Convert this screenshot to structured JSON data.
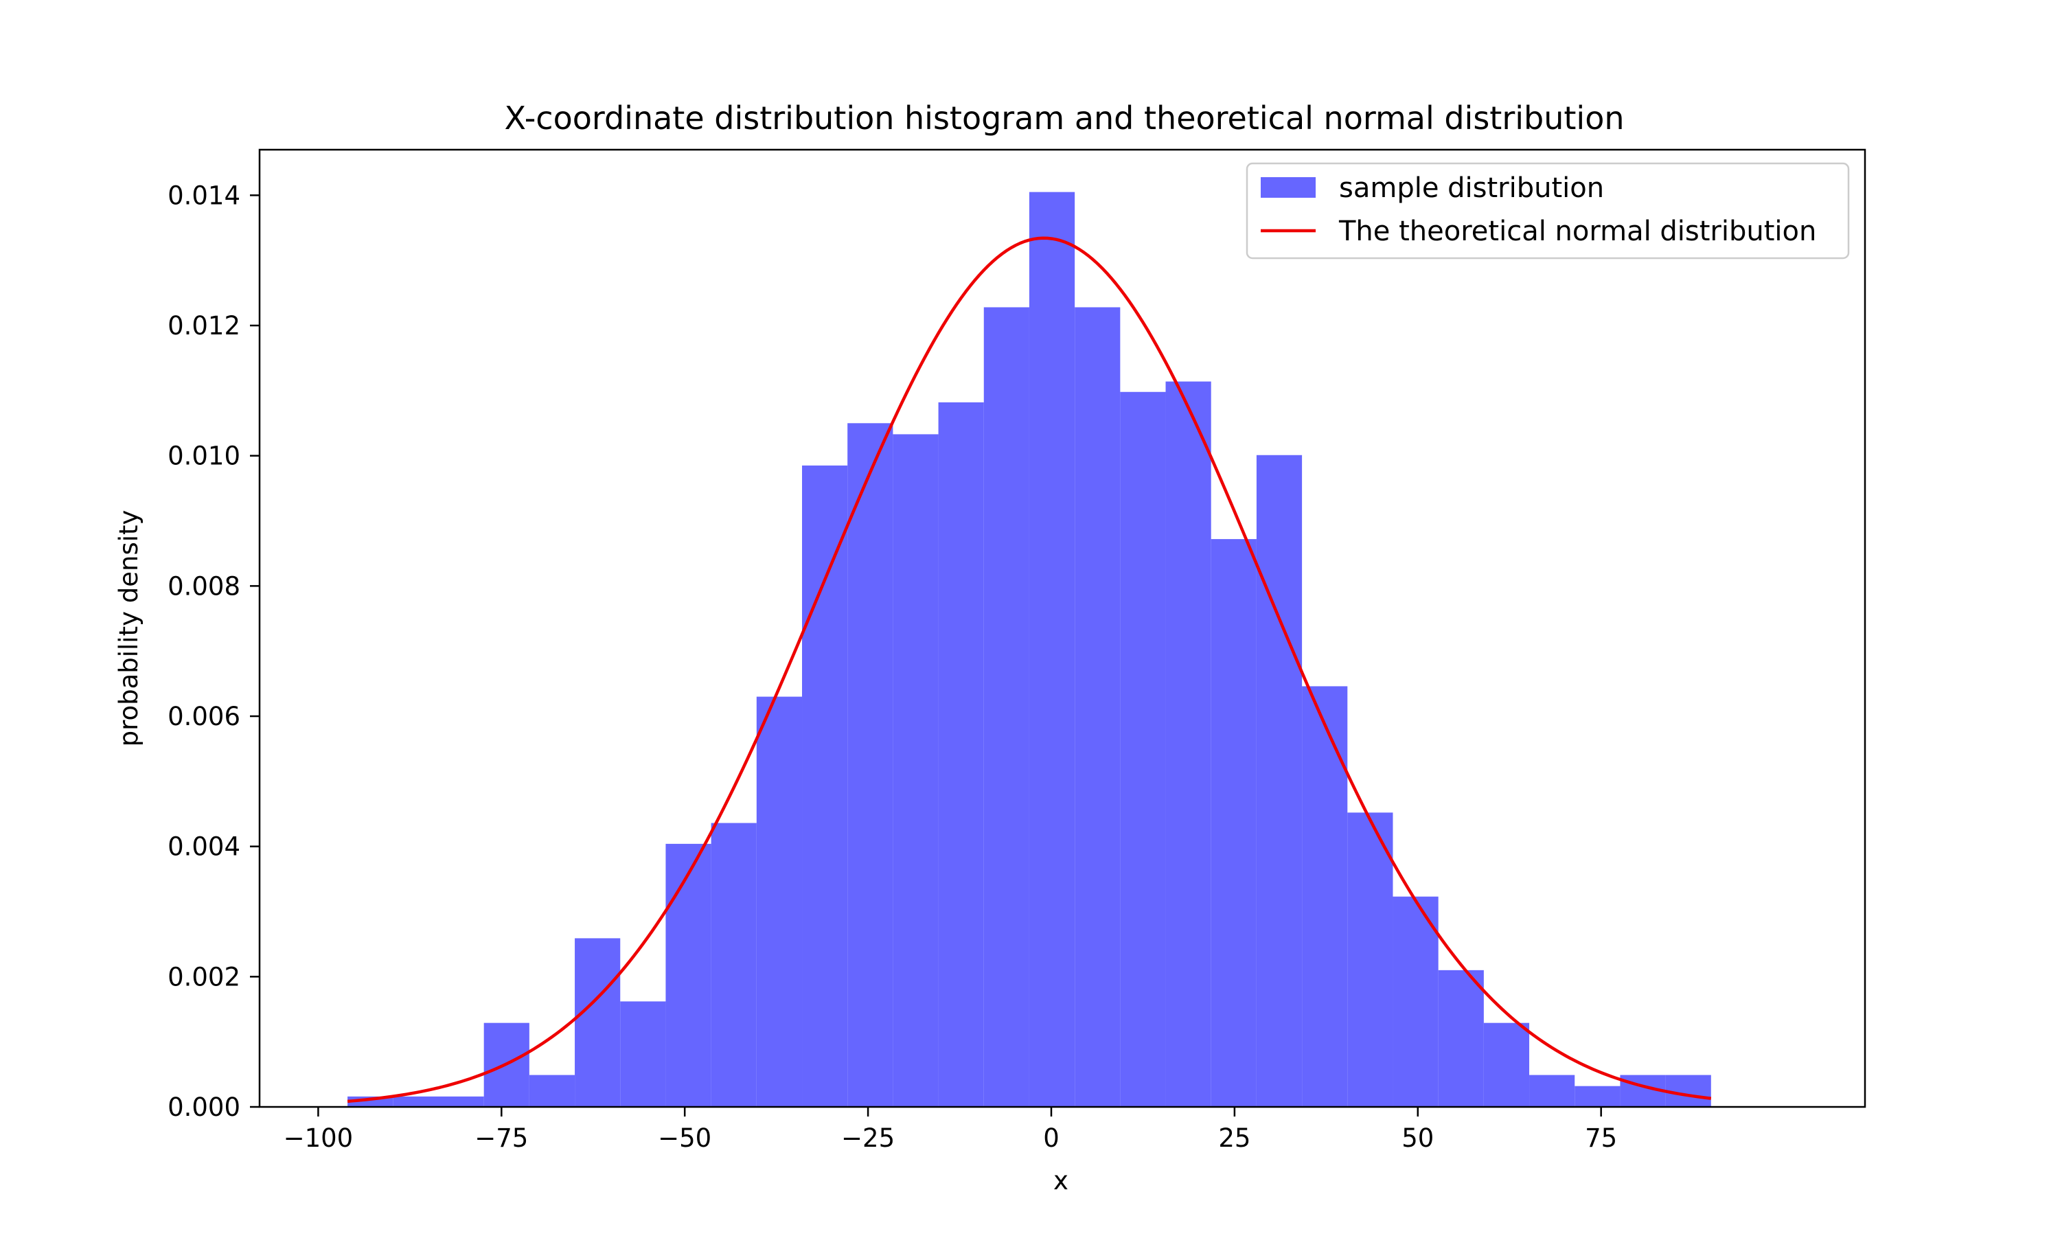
{
  "chart_data": {
    "type": "bar",
    "title": "X-coordinate distribution histogram and theoretical normal distribution",
    "xlabel": "x",
    "ylabel": "probability density",
    "xlim": [
      -108,
      111
    ],
    "ylim": [
      0,
      0.0147
    ],
    "xticks": [
      -100,
      -75,
      -50,
      -25,
      0,
      25,
      50,
      75
    ],
    "xtick_labels": [
      "−100",
      "−75",
      "−50",
      "−25",
      "0",
      "25",
      "50",
      "75"
    ],
    "yticks": [
      0,
      0.002,
      0.004,
      0.006,
      0.008,
      0.01,
      0.012,
      0.014
    ],
    "ytick_labels": [
      "0.000",
      "0.002",
      "0.004",
      "0.006",
      "0.008",
      "0.010",
      "0.012",
      "0.014"
    ],
    "grid": false,
    "legend_position": "upper right",
    "series": [
      {
        "name": "sample distribution",
        "type": "histogram",
        "color": "#6666ff",
        "bin_edges": [
          -96,
          -89.8,
          -83.6,
          -77.4,
          -71.2,
          -65,
          -58.8,
          -52.6,
          -46.4,
          -40.2,
          -34,
          -27.8,
          -21.6,
          -15.4,
          -9.2,
          -3,
          3.2,
          9.4,
          15.6,
          21.8,
          28,
          34.2,
          40.4,
          46.6,
          52.8,
          59,
          65.2,
          71.4,
          77.6,
          83.8,
          90
        ],
        "values": [
          0.00016,
          0.00016,
          0.00016,
          0.00129,
          0.00049,
          0.00259,
          0.00162,
          0.00404,
          0.00436,
          0.0063,
          0.00985,
          0.0105,
          0.01033,
          0.01082,
          0.01228,
          0.01405,
          0.01228,
          0.01098,
          0.01114,
          0.00872,
          0.01001,
          0.00646,
          0.00452,
          0.00323,
          0.0021,
          0.00129,
          0.00049,
          0.00032,
          0.00049,
          0.00049
        ]
      },
      {
        "name": "The theoretical normal distribution",
        "type": "line",
        "color": "#ee0000",
        "mean": -1,
        "std": 29.9,
        "x_range": [
          -96,
          90
        ]
      }
    ]
  }
}
